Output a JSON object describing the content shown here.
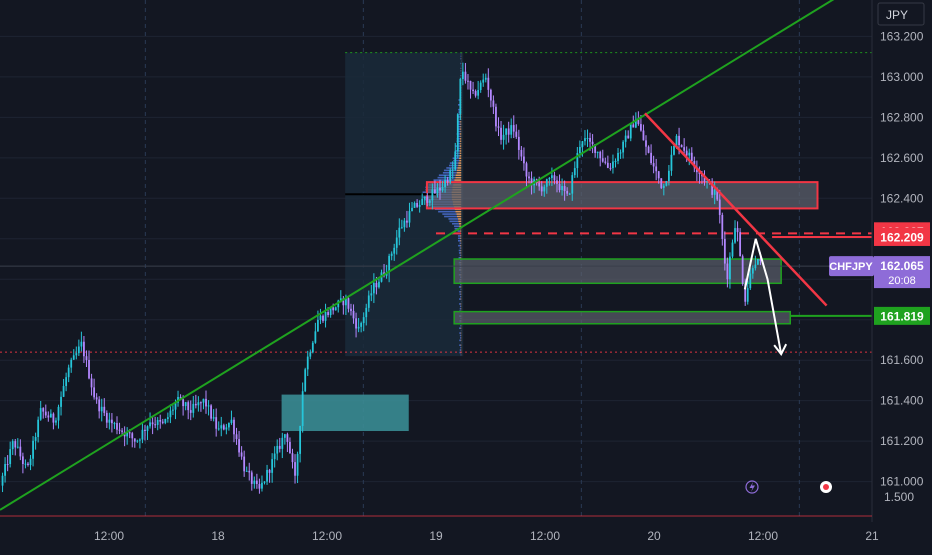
{
  "currency_label": "JPY",
  "colors": {
    "background": "#131722",
    "up": "#26c6da",
    "down": "#b388ff",
    "grid": "#2a3a55",
    "trend": "#1fa21f",
    "resistance": "#f23645",
    "support": "#1fa21f",
    "zone_fill": "#5b5f6b",
    "demand_fill": "#3a8c94",
    "profile_blue": "#4a6fd1",
    "profile_orange": "#f0a060",
    "range_bg": "#1a2a3a",
    "axis_text": "#b2b5be",
    "symbol_badge": "#8e6cd8",
    "projection": "#ffffff"
  },
  "chart_data": {
    "type": "candlestick",
    "symbol": "CHFJPY",
    "y_axis": {
      "ticks": [
        161.0,
        161.2,
        161.4,
        161.6,
        161.8,
        162.0,
        162.2,
        162.4,
        162.6,
        162.8,
        163.0,
        163.2
      ],
      "tick_labels": [
        "161.000",
        "161.200",
        "161.400",
        "161.600",
        "161.800",
        "162.000",
        "162.200",
        "162.400",
        "162.600",
        "162.800",
        "163.000",
        "163.200"
      ],
      "partial_bottom_label": "1.500",
      "range": [
        160.83,
        163.38
      ]
    },
    "x_axis": {
      "range": [
        0,
        96
      ],
      "ticks": [
        {
          "t": 12,
          "label": "12:00"
        },
        {
          "t": 24,
          "label": "18"
        },
        {
          "t": 36,
          "label": "12:00"
        },
        {
          "t": 48,
          "label": "19"
        },
        {
          "t": 60,
          "label": "12:00"
        },
        {
          "t": 72,
          "label": "20"
        },
        {
          "t": 84,
          "label": "12:00"
        },
        {
          "t": 96,
          "label": "21"
        }
      ],
      "grid_lines_at": [
        16,
        40,
        64,
        88
      ]
    },
    "price_path": [
      [
        0,
        160.98
      ],
      [
        1.5,
        161.2
      ],
      [
        3,
        161.05
      ],
      [
        4.5,
        161.35
      ],
      [
        6,
        161.3
      ],
      [
        7.5,
        161.55
      ],
      [
        9,
        161.68
      ],
      [
        10.5,
        161.4
      ],
      [
        12,
        161.3
      ],
      [
        13.5,
        161.25
      ],
      [
        15,
        161.2
      ],
      [
        16.5,
        161.3
      ],
      [
        18,
        161.28
      ],
      [
        19.5,
        161.4
      ],
      [
        21,
        161.35
      ],
      [
        22.5,
        161.4
      ],
      [
        24,
        161.25
      ],
      [
        25.5,
        161.3
      ],
      [
        27,
        161.05
      ],
      [
        28.5,
        160.95
      ],
      [
        30,
        161.1
      ],
      [
        31.5,
        161.25
      ],
      [
        32.5,
        161.0
      ],
      [
        33.5,
        161.55
      ],
      [
        35,
        161.8
      ],
      [
        36.5,
        161.85
      ],
      [
        38,
        161.9
      ],
      [
        39.5,
        161.75
      ],
      [
        41,
        161.95
      ],
      [
        42.5,
        162.05
      ],
      [
        44,
        162.25
      ],
      [
        45.5,
        162.35
      ],
      [
        47,
        162.4
      ],
      [
        48.5,
        162.45
      ],
      [
        50,
        162.55
      ],
      [
        50.8,
        163.05
      ],
      [
        52,
        162.9
      ],
      [
        53.5,
        163.0
      ],
      [
        55,
        162.7
      ],
      [
        56.5,
        162.75
      ],
      [
        58,
        162.5
      ],
      [
        59.5,
        162.45
      ],
      [
        61,
        162.5
      ],
      [
        62.5,
        162.4
      ],
      [
        64,
        162.7
      ],
      [
        65.5,
        162.65
      ],
      [
        67,
        162.55
      ],
      [
        68.5,
        162.65
      ],
      [
        70,
        162.8
      ],
      [
        71.5,
        162.6
      ],
      [
        73,
        162.45
      ],
      [
        74.5,
        162.7
      ],
      [
        76,
        162.6
      ],
      [
        77.5,
        162.5
      ],
      [
        79,
        162.4
      ],
      [
        80,
        162.0
      ],
      [
        81,
        162.3
      ],
      [
        82,
        161.9
      ],
      [
        83,
        162.1
      ],
      [
        84,
        162.06
      ]
    ],
    "current_price": {
      "value": 162.065,
      "label": "162.065",
      "countdown": "20:08"
    },
    "price_labels": [
      {
        "value": 162.227,
        "label": "162.227",
        "style": "red"
      },
      {
        "value": 162.209,
        "label": "162.209",
        "style": "red"
      },
      {
        "value": 161.819,
        "label": "161.819",
        "style": "green"
      }
    ],
    "trendline": {
      "from": [
        0,
        160.86
      ],
      "to": [
        96,
        163.5
      ]
    },
    "resistance_line": {
      "from": [
        71,
        162.82
      ],
      "to": [
        91,
        161.87
      ]
    },
    "zones": [
      {
        "kind": "resistance",
        "t0": 47,
        "t1": 90,
        "p_low": 162.35,
        "p_high": 162.48
      },
      {
        "kind": "support",
        "t0": 50,
        "t1": 86,
        "p_low": 161.98,
        "p_high": 162.1
      },
      {
        "kind": "support",
        "t0": 50,
        "t1": 87,
        "p_low": 161.78,
        "p_high": 161.84
      },
      {
        "kind": "demand",
        "t0": 31,
        "t1": 45,
        "p_low": 161.25,
        "p_high": 161.43
      }
    ],
    "volume_profile_range": {
      "t0": 38,
      "t1": 51,
      "p_low": 161.62,
      "p_high": 163.12
    },
    "levels": [
      {
        "kind": "dashed-red",
        "value": 162.227,
        "t0": 48
      },
      {
        "kind": "dotted-red",
        "value": 161.64,
        "t0": 0
      },
      {
        "kind": "dotted-green",
        "value": 163.12,
        "t0": 38
      },
      {
        "kind": "black",
        "value": 162.42,
        "t0": 38,
        "t1": 48
      }
    ],
    "projection": {
      "points": [
        [
          82,
          161.95
        ],
        [
          83.2,
          162.2
        ],
        [
          84.5,
          162.0
        ],
        [
          86,
          161.63
        ]
      ]
    }
  }
}
